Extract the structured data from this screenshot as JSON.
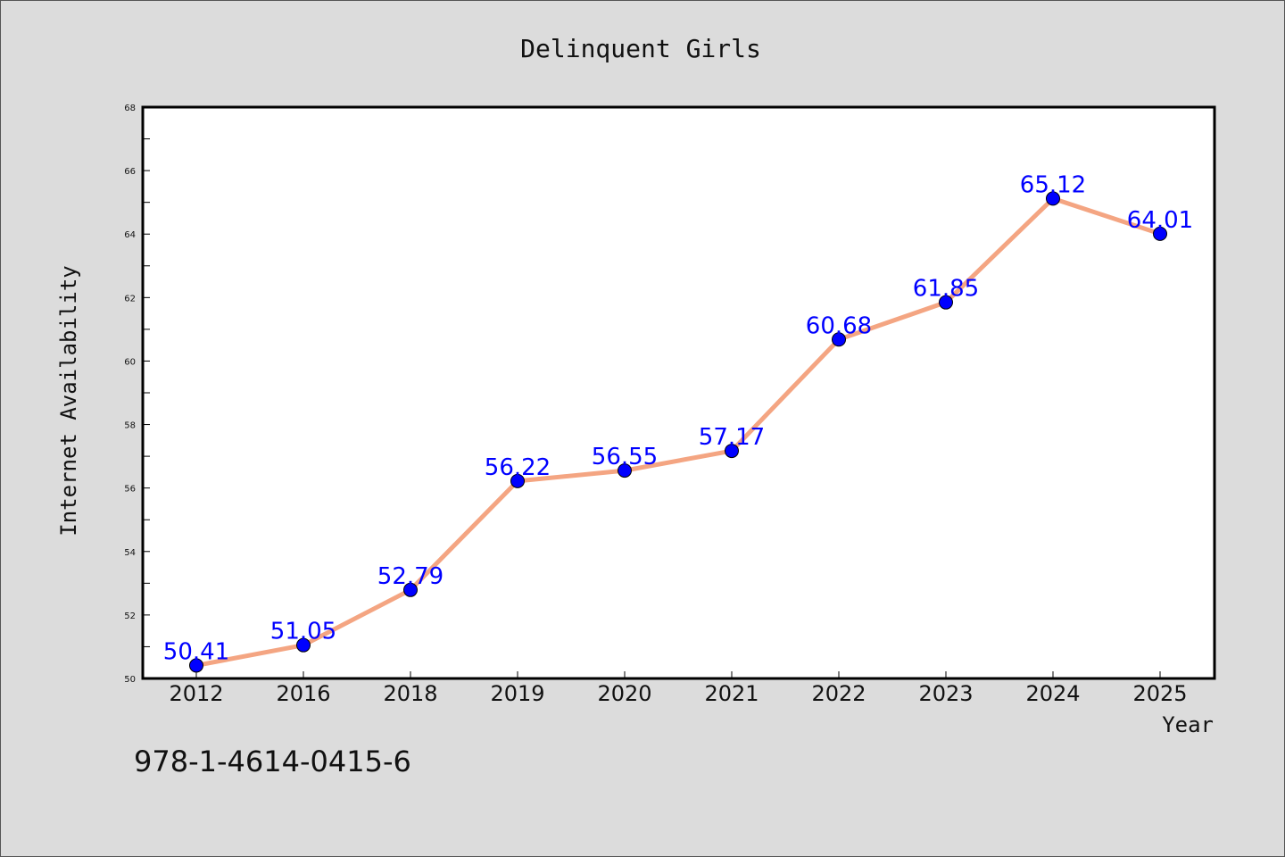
{
  "chart_data": {
    "type": "line",
    "title": "Delinquent Girls",
    "xlabel": "Year",
    "ylabel": "Internet Availability",
    "categories": [
      "2012",
      "2016",
      "2018",
      "2019",
      "2020",
      "2021",
      "2022",
      "2023",
      "2024",
      "2025"
    ],
    "series": [
      {
        "values": [
          50.41,
          51.05,
          52.79,
          56.22,
          56.55,
          57.17,
          60.68,
          61.85,
          65.12,
          64.01
        ],
        "line_color": "#f4a582",
        "marker_color": "#0000ff"
      }
    ],
    "ylim": [
      50,
      68
    ],
    "yticks": [
      50,
      52,
      54,
      56,
      58,
      60,
      62,
      64,
      66,
      68
    ],
    "data_labels": [
      "50.41",
      "51.05",
      "52.79",
      "56.22",
      "56.55",
      "57.17",
      "60.68",
      "61.85",
      "65.12",
      "64.01"
    ],
    "grid": false,
    "legend": "none"
  },
  "footer": {
    "isbn": "978-1-4614-0415-6"
  }
}
